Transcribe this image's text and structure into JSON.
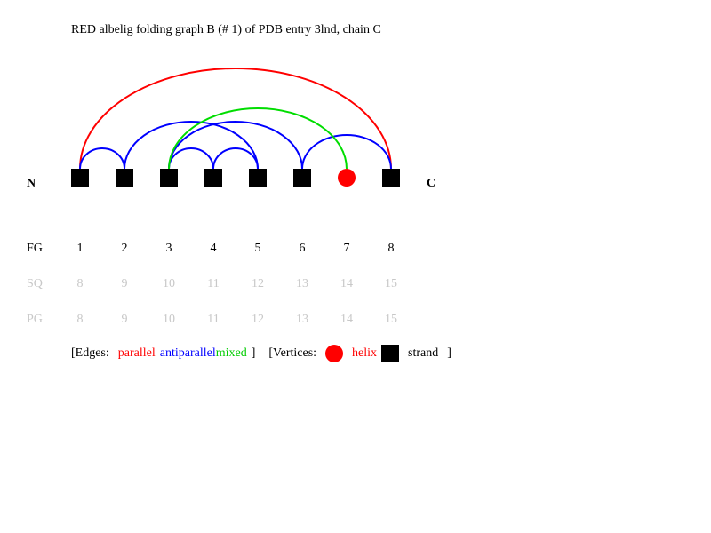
{
  "title": "RED albelig folding graph B (# 1) of PDB entry 3lnd, chain C",
  "terminus_n": "N",
  "terminus_c": "C",
  "rows": {
    "fg": {
      "label": "FG",
      "values": [
        "1",
        "2",
        "3",
        "4",
        "5",
        "6",
        "7",
        "8"
      ]
    },
    "sq": {
      "label": "SQ",
      "values": [
        "8",
        "9",
        "10",
        "11",
        "12",
        "13",
        "14",
        "15"
      ]
    },
    "pg": {
      "label": "PG",
      "values": [
        "8",
        "9",
        "10",
        "11",
        "12",
        "13",
        "14",
        "15"
      ]
    }
  },
  "vertices": [
    {
      "type": "strand"
    },
    {
      "type": "strand"
    },
    {
      "type": "strand"
    },
    {
      "type": "strand"
    },
    {
      "type": "strand"
    },
    {
      "type": "strand"
    },
    {
      "type": "helix"
    },
    {
      "type": "strand"
    }
  ],
  "edges": [
    {
      "from": 1,
      "to": 8,
      "type": "parallel"
    },
    {
      "from": 1,
      "to": 2,
      "type": "antiparallel"
    },
    {
      "from": 2,
      "to": 5,
      "type": "antiparallel"
    },
    {
      "from": 3,
      "to": 4,
      "type": "antiparallel"
    },
    {
      "from": 4,
      "to": 5,
      "type": "antiparallel"
    },
    {
      "from": 3,
      "to": 6,
      "type": "antiparallel"
    },
    {
      "from": 6,
      "to": 8,
      "type": "antiparallel"
    },
    {
      "from": 3,
      "to": 7,
      "type": "mixed"
    }
  ],
  "colors": {
    "parallel": "#ff0000",
    "antiparallel": "#0000ff",
    "mixed": "#00dd00",
    "helix": "#ff0000",
    "strand": "#000000",
    "muted_text": "#c8c8c8"
  },
  "legend": {
    "edges_open": "[Edges:",
    "parallel": "parallel",
    "antiparallel": "antiparallel",
    "mixed": "mixed",
    "edges_close": "]",
    "vertices_open": "[Vertices:",
    "helix": "helix",
    "strand": "strand",
    "vertices_close": "]"
  }
}
